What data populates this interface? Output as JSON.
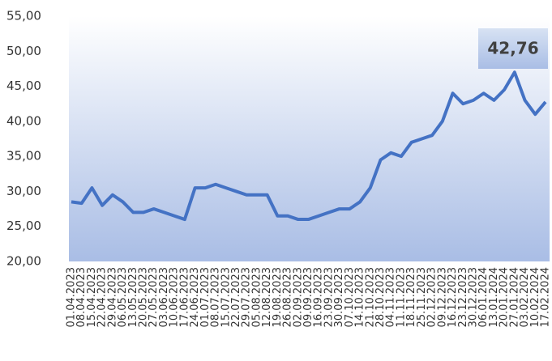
{
  "chart_data": {
    "type": "line",
    "annotation": "42,76",
    "categories": [
      "01.04.2023",
      "08.04.2023",
      "15.04.2023",
      "22.04.2023",
      "29.04.2023",
      "06.05.2023",
      "13.05.2023",
      "20.05.2023",
      "27.05.2023",
      "03.06.2023",
      "10.06.2023",
      "17.06.2023",
      "24.06.2023",
      "01.07.2023",
      "08.07.2023",
      "15.07.2023",
      "22.07.2023",
      "29.07.2023",
      "05.08.2023",
      "12.08.2023",
      "19.08.2023",
      "26.08.2023",
      "02.09.2023",
      "09.09.2023",
      "16.09.2023",
      "23.09.2023",
      "30.09.2023",
      "07.10.2023",
      "14.10.2023",
      "21.10.2023",
      "28.10.2023",
      "04.11.2023",
      "11.11.2023",
      "18.11.2023",
      "25.11.2023",
      "02.12.2023",
      "09.12.2023",
      "16.12.2023",
      "23.12.2023",
      "30.12.2023",
      "06.01.2024",
      "13.01.2024",
      "20.01.2024",
      "27.01.2024",
      "03.02.2024",
      "10.02.2024",
      "17.02.2024"
    ],
    "series": [
      {
        "color": "#4472c4",
        "values": [
          28.5,
          28.3,
          30.5,
          28,
          29.5,
          28.5,
          27,
          27,
          27.5,
          27,
          26.5,
          26,
          30.5,
          30.5,
          31,
          30.5,
          30,
          29.5,
          29.5,
          29.5,
          26.5,
          26.5,
          26,
          26,
          26.5,
          27,
          27.5,
          27.5,
          28.5,
          30.5,
          34.5,
          35.5,
          35,
          37,
          37.5,
          38,
          40,
          44,
          42.5,
          43,
          44,
          43,
          44.5,
          47,
          43,
          41,
          42.76
        ]
      }
    ],
    "ylim": [
      20,
      55
    ],
    "yticks": [
      {
        "value": 20,
        "label": "20,00"
      },
      {
        "value": 25,
        "label": "25,00"
      },
      {
        "value": 30,
        "label": "30,00"
      },
      {
        "value": 35,
        "label": "35,00"
      },
      {
        "value": 40,
        "label": "40,00"
      },
      {
        "value": 45,
        "label": "45,00"
      },
      {
        "value": 50,
        "label": "50,00"
      },
      {
        "value": 55,
        "label": "55,00"
      }
    ]
  }
}
